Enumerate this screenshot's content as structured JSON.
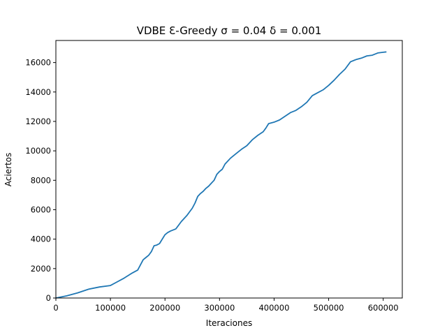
{
  "chart_data": {
    "type": "line",
    "title": "VDBE Ɛ-Greedy  σ = 0.04 δ = 0.001",
    "xlabel": "Iteraciones",
    "ylabel": "Aciertos",
    "xlim": [
      0,
      635000
    ],
    "ylim": [
      0,
      17500
    ],
    "xticks": [
      0,
      100000,
      200000,
      300000,
      400000,
      500000,
      600000
    ],
    "xtick_labels": [
      "0",
      "100000",
      "200000",
      "300000",
      "400000",
      "500000",
      "600000"
    ],
    "yticks": [
      0,
      2000,
      4000,
      6000,
      8000,
      10000,
      12000,
      14000,
      16000
    ],
    "ytick_labels": [
      "0",
      "2000",
      "4000",
      "6000",
      "8000",
      "10000",
      "12000",
      "14000",
      "16000"
    ],
    "grid": false,
    "series": [
      {
        "color": "#1f77b4",
        "x": [
          0,
          20000,
          40000,
          60000,
          80000,
          100000,
          110000,
          125000,
          140000,
          150000,
          155000,
          160000,
          165000,
          170000,
          175000,
          180000,
          185000,
          190000,
          195000,
          200000,
          205000,
          210000,
          220000,
          230000,
          240000,
          245000,
          250000,
          255000,
          260000,
          265000,
          270000,
          275000,
          280000,
          285000,
          290000,
          295000,
          300000,
          305000,
          310000,
          320000,
          330000,
          340000,
          350000,
          360000,
          370000,
          380000,
          385000,
          390000,
          400000,
          410000,
          420000,
          430000,
          440000,
          450000,
          460000,
          470000,
          480000,
          490000,
          500000,
          510000,
          520000,
          530000,
          540000,
          550000,
          560000,
          570000,
          580000,
          590000,
          600000,
          605000
        ],
        "y": [
          0,
          150,
          350,
          600,
          750,
          850,
          1050,
          1350,
          1700,
          1900,
          2250,
          2600,
          2750,
          2900,
          3150,
          3550,
          3600,
          3700,
          4000,
          4300,
          4450,
          4550,
          4700,
          5200,
          5600,
          5850,
          6100,
          6450,
          6900,
          7100,
          7250,
          7450,
          7600,
          7800,
          8000,
          8400,
          8600,
          8750,
          9100,
          9500,
          9800,
          10100,
          10350,
          10750,
          11050,
          11300,
          11550,
          11850,
          11950,
          12100,
          12350,
          12600,
          12750,
          13000,
          13300,
          13750,
          13950,
          14150,
          14450,
          14800,
          15200,
          15550,
          16050,
          16200,
          16300,
          16450,
          16500,
          16650,
          16700,
          16720
        ]
      }
    ]
  }
}
